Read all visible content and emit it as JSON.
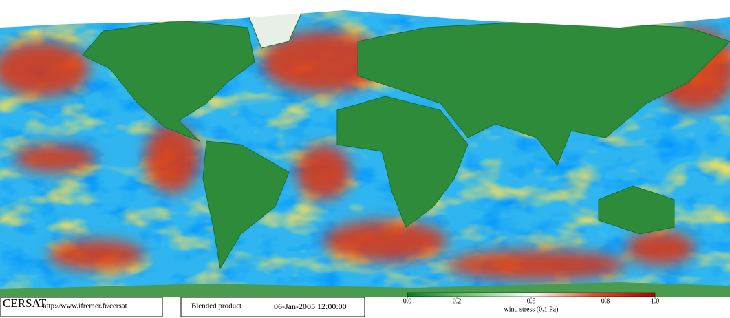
{
  "footer": {
    "logo": "CERSAT",
    "url": "http://www.ifremer.fr/cersat",
    "product": "Blended product",
    "datetime": "06-Jan-2005 12:00:00"
  },
  "colorbar": {
    "lim": [
      0,
      1
    ],
    "ticks": [
      {
        "value": 0,
        "label": "0.0"
      },
      0.2,
      0.5,
      0.8,
      {
        "value": 1,
        "label": "1.0"
      }
    ],
    "label": "wind stress (0.1 Pa)"
  }
}
